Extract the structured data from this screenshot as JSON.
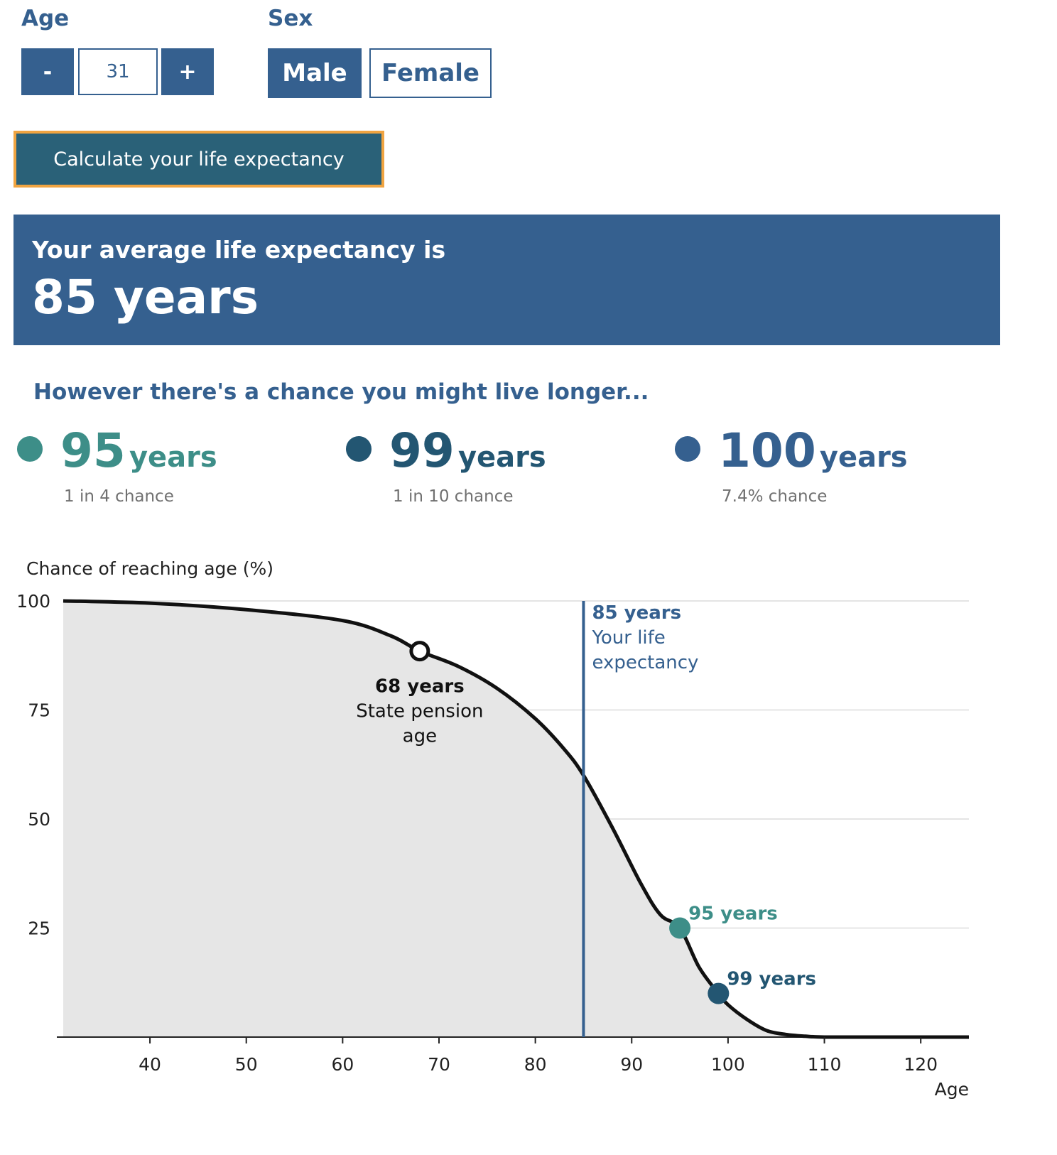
{
  "form": {
    "age_label": "Age",
    "age_decrement": "-",
    "age_value": "31",
    "age_increment": "+",
    "sex_label": "Sex",
    "sex_options": [
      "Male",
      "Female"
    ],
    "sex_selected": "Male",
    "calculate_label": "Calculate your life expectancy"
  },
  "result": {
    "lead": "Your average life expectancy is",
    "value": "85 years"
  },
  "longer": {
    "heading": "However there's a chance you might live longer...",
    "stats": [
      {
        "number": "95",
        "unit": "years",
        "chance": "1 in 4 chance",
        "color": "#3d8e88"
      },
      {
        "number": "99",
        "unit": "years",
        "chance": "1 in 10 chance",
        "color": "#235672"
      },
      {
        "number": "100",
        "unit": "years",
        "chance": "7.4% chance",
        "color": "#35608f"
      }
    ]
  },
  "chart_data": {
    "type": "area",
    "ylabel": "Chance of reaching age (%)",
    "xlabel": "Age",
    "xlim": [
      31,
      125
    ],
    "ylim": [
      0,
      100
    ],
    "xticks": [
      40,
      50,
      60,
      70,
      80,
      90,
      100,
      110,
      120
    ],
    "yticks": [
      25,
      50,
      75,
      100
    ],
    "grid": true,
    "series": [
      {
        "x": [
          31,
          40,
          50,
          60,
          65,
          68,
          72,
          76,
          80,
          83,
          85,
          88,
          91,
          93,
          95,
          97,
          99,
          100,
          102,
          104,
          106,
          108,
          110,
          115,
          120,
          125
        ],
        "y": [
          100,
          99.5,
          98,
          95.5,
          92,
          88.5,
          85,
          80,
          73,
          66,
          60,
          48,
          35,
          28,
          25,
          16,
          10,
          7.4,
          4,
          1.5,
          0.6,
          0.2,
          0,
          0,
          0,
          0
        ]
      }
    ],
    "annotations": [
      {
        "x": 68,
        "y": 88.5,
        "title": "68 years",
        "text": [
          "State pension",
          "age"
        ],
        "color": "#111111",
        "marker": "open"
      },
      {
        "x": 85,
        "title": "85 years",
        "text": [
          "Your life",
          "expectancy"
        ],
        "color": "#35608f",
        "marker": "vline"
      },
      {
        "x": 95,
        "y": 25,
        "title": "95 years",
        "color": "#3d8e88",
        "marker": "dot"
      },
      {
        "x": 99,
        "y": 10,
        "title": "99 years",
        "color": "#235672",
        "marker": "dot"
      }
    ]
  }
}
